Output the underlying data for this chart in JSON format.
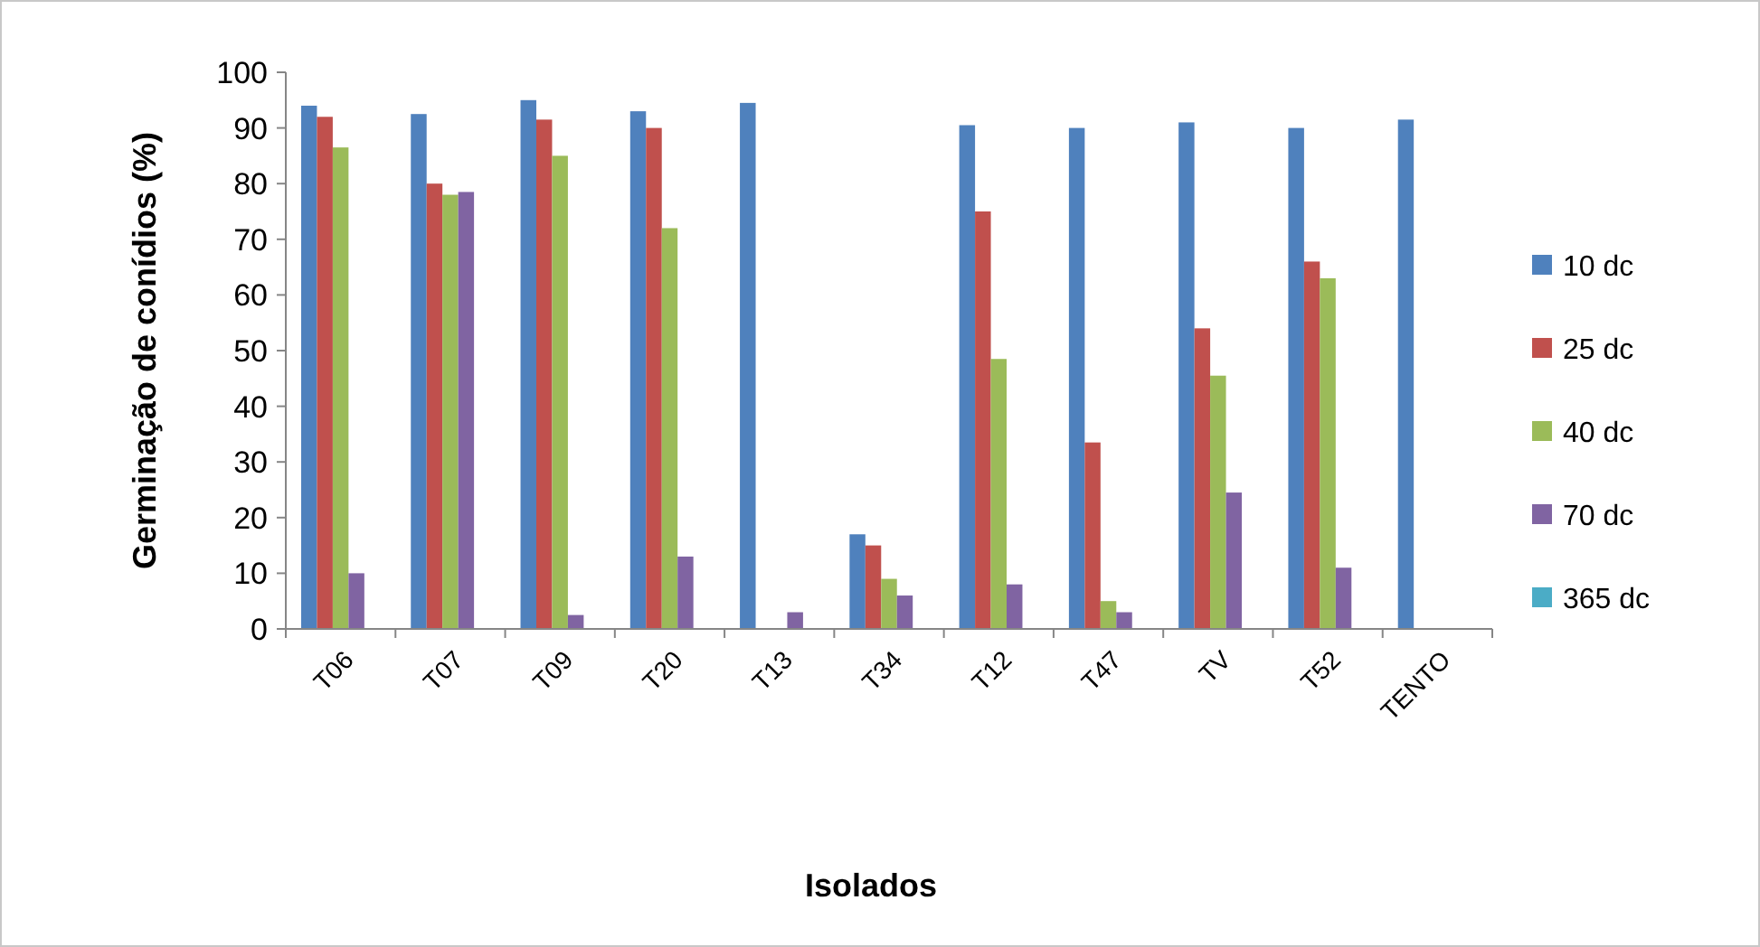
{
  "chart_data": {
    "type": "bar",
    "xlabel": "Isolados",
    "ylabel": "Germinação de conídios (%)",
    "categories": [
      "T06",
      "T07",
      "T09",
      "T20",
      "T13",
      "T34",
      "T12",
      "T47",
      "TV",
      "T52",
      "TENTO"
    ],
    "series": [
      {
        "name": "10 dc",
        "color": "#4f81bd",
        "values": [
          94,
          92.5,
          95,
          93,
          94.5,
          17,
          90.5,
          90,
          91,
          90,
          91.5
        ]
      },
      {
        "name": "25 dc",
        "color": "#c0504d",
        "values": [
          92,
          80,
          91.5,
          90,
          null,
          15,
          75,
          33.5,
          54,
          66,
          null
        ]
      },
      {
        "name": "40 dc",
        "color": "#9bbb59",
        "values": [
          86.5,
          78,
          85,
          72,
          null,
          9,
          48.5,
          5,
          45.5,
          63,
          null
        ]
      },
      {
        "name": "70 dc",
        "color": "#8064a2",
        "values": [
          10,
          78.5,
          2.5,
          13,
          3,
          6,
          8,
          3,
          24.5,
          11,
          null
        ]
      },
      {
        "name": "365 dc",
        "color": "#4bacc6",
        "values": [
          null,
          null,
          null,
          null,
          null,
          null,
          null,
          null,
          null,
          null,
          null
        ]
      }
    ],
    "ylim": [
      0,
      100
    ],
    "yticks": [
      0,
      10,
      20,
      30,
      40,
      50,
      60,
      70,
      80,
      90,
      100
    ],
    "legend": "right",
    "grid": false
  }
}
